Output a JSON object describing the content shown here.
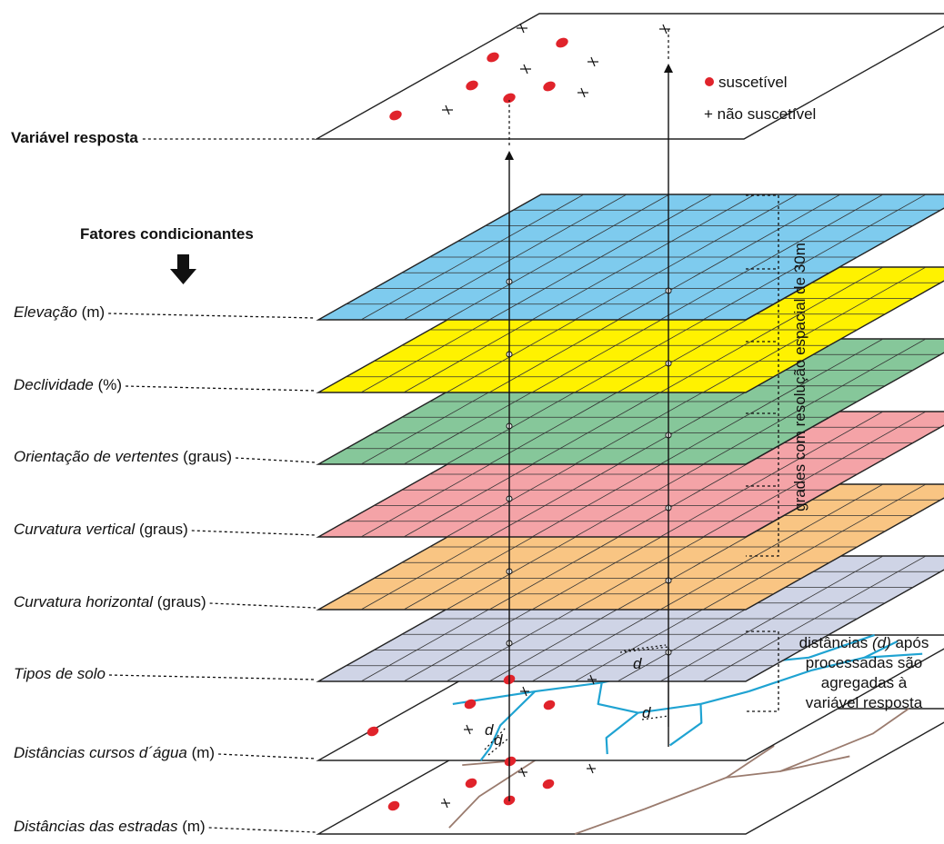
{
  "response": {
    "label": "Variável resposta",
    "legend_susceptible": "suscetível",
    "legend_not_susceptible": "+ não suscetível",
    "point_color": "#e0232b"
  },
  "factors_header": "Fatores condicionantes",
  "layers": [
    {
      "name_italic": "Elevação",
      "unit": " (m)",
      "color": "#7ecbee"
    },
    {
      "name_italic": "Declividade",
      "unit": " (%)",
      "color": "#fff200"
    },
    {
      "name_italic": "Orientação de vertentes",
      "unit": " (graus)",
      "color": "#86c79a"
    },
    {
      "name_italic": "Curvatura vertical",
      "unit": " (graus)",
      "color": "#f4a3a7"
    },
    {
      "name_italic": "Curvatura horizontal",
      "unit": " (graus)",
      "color": "#f9c583"
    },
    {
      "name_italic": "Tipos de solo",
      "unit": "",
      "color": "#cfd4e6"
    },
    {
      "name_italic": "Distâncias cursos d´água",
      "unit": " (m)",
      "color": "#ffffff"
    },
    {
      "name_italic": "Distâncias das estradas",
      "unit": " (m)",
      "color": "#ffffff"
    }
  ],
  "bracket_grid_label": "grades com resolução espacial de 30m",
  "bracket_distance_lines": [
    "distâncias (d) após",
    "processadas são",
    "agregadas à",
    "variável resposta"
  ],
  "distance_symbol": "d",
  "colors": {
    "stream": "#1fa3d2",
    "road": "#9a7b6e"
  }
}
